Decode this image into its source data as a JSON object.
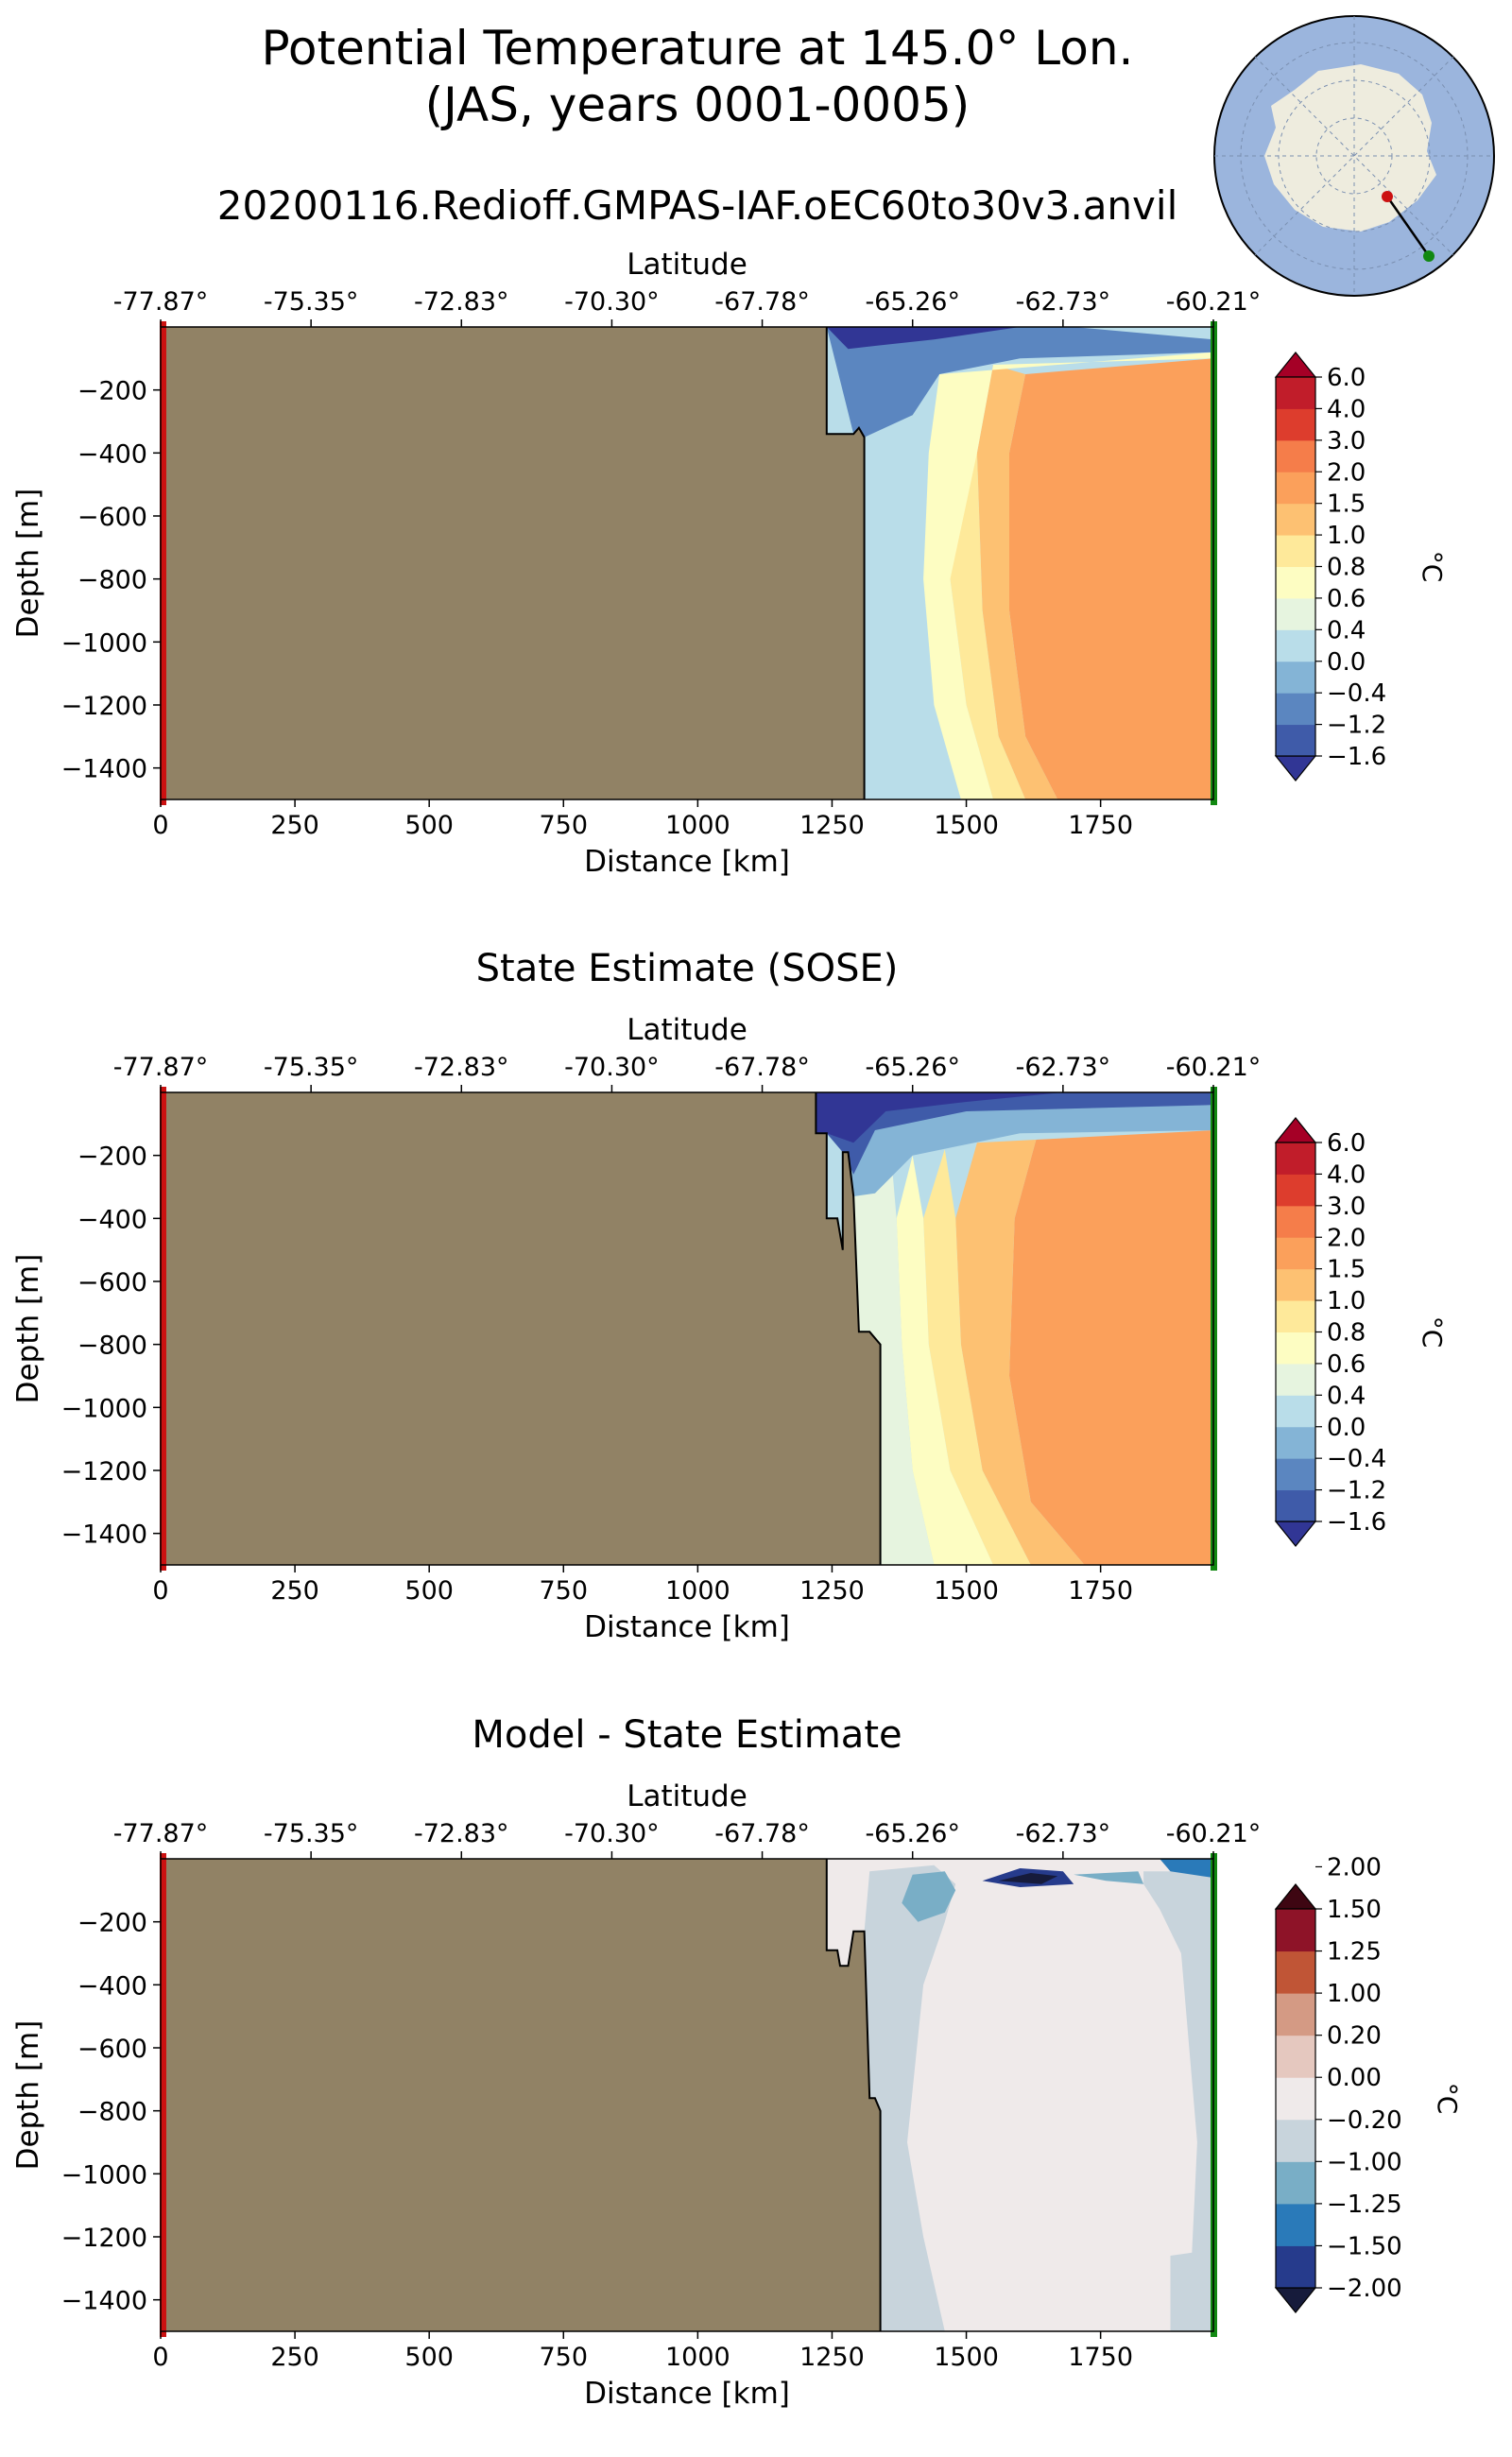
{
  "figure": {
    "title_line1": "Potential Temperature at 145.0° Lon.",
    "title_line2": "(JAS, years 0001-0005)",
    "run_name": "20200116.Redioff.GMPAS-IAF.oEC60to30v3.anvil"
  },
  "colors": {
    "land": "#918265",
    "left_edge": "#cc1111",
    "right_edge": "#118811",
    "map_ocean": "#9bb5dd",
    "map_land": "#eeecde",
    "map_start_point": "#cc1111",
    "map_end_point": "#118811"
  },
  "chart_data": [
    {
      "type": "heatmap",
      "title": "",
      "xlabel": "Distance [km]",
      "ylabel": "Depth [m]",
      "top_xlabel": "Latitude",
      "xlim": [
        0,
        1960
      ],
      "ylim": [
        -1500,
        0
      ],
      "x_ticks": [
        0,
        250,
        500,
        750,
        1000,
        1250,
        1500,
        1750
      ],
      "y_ticks": [
        -200,
        -400,
        -600,
        -800,
        -1000,
        -1200,
        -1400
      ],
      "latitude_ticks": [
        "-77.87°",
        "-75.35°",
        "-72.83°",
        "-70.30°",
        "-67.78°",
        "-65.26°",
        "-62.73°",
        "-60.21°"
      ],
      "colorbar_unit": "°C",
      "colorbar_levels": [
        "-1.6",
        "-1.2",
        "-0.4",
        "0.0",
        "0.4",
        "0.6",
        "0.8",
        "1.0",
        "1.5",
        "2.0",
        "3.0",
        "4.0",
        "6.0"
      ],
      "colorbar_colors": [
        "#313695",
        "#3f5ba9",
        "#5b86c0",
        "#84b4d6",
        "#b9dde9",
        "#e6f4df",
        "#fdfdc2",
        "#fee99a",
        "#fdc172",
        "#fba05b",
        "#f57d4a",
        "#dd3d2d",
        "#c11d2a",
        "#a50026"
      ],
      "land_boundary": [
        [
          1240,
          0
        ],
        [
          1240,
          -340
        ],
        [
          1290,
          -340
        ],
        [
          1300,
          -320
        ],
        [
          1310,
          -350
        ],
        [
          1310,
          -1500
        ]
      ],
      "ocean_bands": [
        {
          "level_index": 11,
          "polygon": [
            [
              1720,
              -280
            ],
            [
              1960,
              -200
            ],
            [
              1960,
              -720
            ],
            [
              1860,
              -640
            ],
            [
              1750,
              -560
            ],
            [
              1710,
              -420
            ]
          ]
        },
        {
          "level_index": 9,
          "polygon": [
            [
              1610,
              -150
            ],
            [
              1960,
              -100
            ],
            [
              1960,
              -1500
            ],
            [
              1670,
              -1500
            ],
            [
              1610,
              -1300
            ],
            [
              1580,
              -900
            ],
            [
              1580,
              -400
            ]
          ]
        },
        {
          "level_index": 8,
          "polygon": [
            [
              1550,
              -120
            ],
            [
              1610,
              -150
            ],
            [
              1580,
              -400
            ],
            [
              1580,
              -900
            ],
            [
              1610,
              -1300
            ],
            [
              1670,
              -1500
            ],
            [
              1610,
              -1500
            ],
            [
              1560,
              -1300
            ],
            [
              1530,
              -900
            ],
            [
              1520,
              -400
            ]
          ]
        },
        {
          "level_index": 7,
          "polygon": [
            [
              1500,
              -200
            ],
            [
              1520,
              -400
            ],
            [
              1530,
              -900
            ],
            [
              1560,
              -1300
            ],
            [
              1610,
              -1500
            ],
            [
              1550,
              -1500
            ],
            [
              1500,
              -1200
            ],
            [
              1470,
              -800
            ],
            [
              1460,
              -400
            ]
          ]
        },
        {
          "level_index": 6,
          "polygon": [
            [
              1450,
              -150
            ],
            [
              1960,
              -80
            ],
            [
              1960,
              -100
            ],
            [
              1550,
              -120
            ],
            [
              1520,
              -400
            ],
            [
              1470,
              -800
            ],
            [
              1500,
              -1200
            ],
            [
              1550,
              -1500
            ],
            [
              1490,
              -1500
            ],
            [
              1440,
              -1200
            ],
            [
              1420,
              -800
            ],
            [
              1430,
              -400
            ]
          ]
        },
        {
          "level_index": 2,
          "polygon": [
            [
              1240,
              0
            ],
            [
              1700,
              0
            ],
            [
              1960,
              -40
            ],
            [
              1960,
              -80
            ],
            [
              1600,
              -100
            ],
            [
              1450,
              -150
            ],
            [
              1400,
              -280
            ],
            [
              1310,
              -350
            ],
            [
              1290,
              -340
            ]
          ]
        },
        {
          "level_index": 0,
          "polygon": [
            [
              1240,
              0
            ],
            [
              1600,
              0
            ],
            [
              1440,
              -40
            ],
            [
              1330,
              -60
            ],
            [
              1280,
              -70
            ]
          ]
        }
      ]
    },
    {
      "type": "heatmap",
      "title": "State Estimate (SOSE)",
      "xlabel": "Distance [km]",
      "ylabel": "Depth [m]",
      "top_xlabel": "Latitude",
      "xlim": [
        0,
        1960
      ],
      "ylim": [
        -1500,
        0
      ],
      "x_ticks": [
        0,
        250,
        500,
        750,
        1000,
        1250,
        1500,
        1750
      ],
      "y_ticks": [
        -200,
        -400,
        -600,
        -800,
        -1000,
        -1200,
        -1400
      ],
      "latitude_ticks": [
        "-77.87°",
        "-75.35°",
        "-72.83°",
        "-70.30°",
        "-67.78°",
        "-65.26°",
        "-62.73°",
        "-60.21°"
      ],
      "colorbar_unit": "°C",
      "colorbar_levels": [
        "-1.6",
        "-1.2",
        "-0.4",
        "0.0",
        "0.4",
        "0.6",
        "0.8",
        "1.0",
        "1.5",
        "2.0",
        "3.0",
        "4.0",
        "6.0"
      ],
      "colorbar_colors": [
        "#313695",
        "#3f5ba9",
        "#5b86c0",
        "#84b4d6",
        "#b9dde9",
        "#e6f4df",
        "#fdfdc2",
        "#fee99a",
        "#fdc172",
        "#fba05b",
        "#f57d4a",
        "#dd3d2d",
        "#c11d2a",
        "#a50026"
      ],
      "land_boundary": [
        [
          1220,
          0
        ],
        [
          1220,
          -130
        ],
        [
          1240,
          -130
        ],
        [
          1240,
          -400
        ],
        [
          1260,
          -400
        ],
        [
          1270,
          -500
        ],
        [
          1270,
          -190
        ],
        [
          1280,
          -190
        ],
        [
          1290,
          -330
        ],
        [
          1300,
          -760
        ],
        [
          1320,
          -760
        ],
        [
          1340,
          -800
        ],
        [
          1340,
          -1500
        ]
      ],
      "ocean_bands": [
        {
          "level_index": 10,
          "polygon": [
            [
              1760,
              -180
            ],
            [
              1960,
              -150
            ],
            [
              1960,
              -1050
            ],
            [
              1870,
              -950
            ],
            [
              1780,
              -800
            ],
            [
              1750,
              -500
            ],
            [
              1740,
              -250
            ]
          ]
        },
        {
          "level_index": 9,
          "polygon": [
            [
              1630,
              -150
            ],
            [
              1960,
              -120
            ],
            [
              1960,
              -1500
            ],
            [
              1720,
              -1500
            ],
            [
              1620,
              -1300
            ],
            [
              1580,
              -900
            ],
            [
              1590,
              -400
            ]
          ]
        },
        {
          "level_index": 8,
          "polygon": [
            [
              1520,
              -160
            ],
            [
              1630,
              -150
            ],
            [
              1590,
              -400
            ],
            [
              1580,
              -900
            ],
            [
              1620,
              -1300
            ],
            [
              1720,
              -1500
            ],
            [
              1620,
              -1500
            ],
            [
              1530,
              -1200
            ],
            [
              1490,
              -800
            ],
            [
              1480,
              -400
            ]
          ]
        },
        {
          "level_index": 7,
          "polygon": [
            [
              1460,
              -180
            ],
            [
              1480,
              -400
            ],
            [
              1490,
              -800
            ],
            [
              1530,
              -1200
            ],
            [
              1620,
              -1500
            ],
            [
              1550,
              -1500
            ],
            [
              1470,
              -1200
            ],
            [
              1430,
              -800
            ],
            [
              1420,
              -400
            ]
          ]
        },
        {
          "level_index": 6,
          "polygon": [
            [
              1400,
              -200
            ],
            [
              1420,
              -400
            ],
            [
              1430,
              -800
            ],
            [
              1470,
              -1200
            ],
            [
              1550,
              -1500
            ],
            [
              1440,
              -1500
            ],
            [
              1400,
              -1200
            ],
            [
              1380,
              -800
            ],
            [
              1370,
              -400
            ]
          ]
        },
        {
          "level_index": 5,
          "polygon": [
            [
              1360,
              -200
            ],
            [
              1370,
              -400
            ],
            [
              1380,
              -800
            ],
            [
              1400,
              -1200
            ],
            [
              1440,
              -1500
            ],
            [
              1340,
              -1500
            ],
            [
              1340,
              -800
            ],
            [
              1300,
              -760
            ],
            [
              1290,
              -330
            ]
          ]
        },
        {
          "level_index": 3,
          "polygon": [
            [
              1240,
              -60
            ],
            [
              1960,
              -40
            ],
            [
              1960,
              -120
            ],
            [
              1600,
              -130
            ],
            [
              1400,
              -200
            ],
            [
              1330,
              -320
            ],
            [
              1290,
              -330
            ],
            [
              1270,
              -190
            ],
            [
              1240,
              -130
            ]
          ]
        },
        {
          "level_index": 1,
          "polygon": [
            [
              1220,
              0
            ],
            [
              1960,
              0
            ],
            [
              1960,
              -40
            ],
            [
              1500,
              -60
            ],
            [
              1330,
              -120
            ],
            [
              1290,
              -260
            ],
            [
              1270,
              -190
            ],
            [
              1240,
              -130
            ],
            [
              1220,
              -130
            ]
          ]
        },
        {
          "level_index": 0,
          "polygon": [
            [
              1220,
              0
            ],
            [
              1680,
              0
            ],
            [
              1500,
              -30
            ],
            [
              1350,
              -60
            ],
            [
              1290,
              -160
            ],
            [
              1240,
              -130
            ],
            [
              1220,
              -130
            ]
          ]
        }
      ]
    },
    {
      "type": "heatmap",
      "title": "Model - State Estimate",
      "xlabel": "Distance [km]",
      "ylabel": "Depth [m]",
      "top_xlabel": "Latitude",
      "xlim": [
        0,
        1960
      ],
      "ylim": [
        -1500,
        0
      ],
      "x_ticks": [
        0,
        250,
        500,
        750,
        1000,
        1250,
        1500,
        1750
      ],
      "y_ticks": [
        -200,
        -400,
        -600,
        -800,
        -1000,
        -1200,
        -1400
      ],
      "latitude_ticks": [
        "-77.87°",
        "-75.35°",
        "-72.83°",
        "-70.30°",
        "-67.78°",
        "-65.26°",
        "-62.73°",
        "-60.21°"
      ],
      "colorbar_unit": "°C",
      "colorbar_levels": [
        "-2.00",
        "-1.50",
        "-1.25",
        "-1.00",
        "-0.20",
        "0.00",
        "0.20",
        "1.00",
        "1.25",
        "1.50",
        "2.00"
      ],
      "colorbar_colors": [
        "#161b3b",
        "#263b8c",
        "#2a7ab9",
        "#79aec6",
        "#c8d4dc",
        "#efeaea",
        "#e5c8bf",
        "#d49a84",
        "#c05536",
        "#8e1328",
        "#3e0612"
      ],
      "land_boundary": [
        [
          1240,
          0
        ],
        [
          1240,
          -290
        ],
        [
          1260,
          -290
        ],
        [
          1265,
          -340
        ],
        [
          1280,
          -340
        ],
        [
          1290,
          -230
        ],
        [
          1310,
          -230
        ],
        [
          1320,
          -760
        ],
        [
          1330,
          -760
        ],
        [
          1340,
          -800
        ],
        [
          1340,
          -1500
        ]
      ],
      "ocean_bands": [
        {
          "level_index": 4,
          "polygon": [
            [
              1320,
              -40
            ],
            [
              1440,
              -20
            ],
            [
              1480,
              -80
            ],
            [
              1460,
              -200
            ],
            [
              1420,
              -400
            ],
            [
              1390,
              -900
            ],
            [
              1420,
              -1200
            ],
            [
              1460,
              -1500
            ],
            [
              1340,
              -1500
            ],
            [
              1340,
              -800
            ],
            [
              1320,
              -760
            ],
            [
              1310,
              -230
            ]
          ]
        },
        {
          "level_index": 4,
          "polygon": [
            [
              1830,
              -40
            ],
            [
              1960,
              -40
            ],
            [
              1960,
              -1500
            ],
            [
              1880,
              -1500
            ],
            [
              1880,
              -1260
            ],
            [
              1920,
              -1250
            ],
            [
              1930,
              -900
            ],
            [
              1900,
              -300
            ],
            [
              1860,
              -160
            ],
            [
              1830,
              -80
            ]
          ]
        },
        {
          "level_index": 3,
          "polygon": [
            [
              1400,
              -50
            ],
            [
              1460,
              -40
            ],
            [
              1480,
              -100
            ],
            [
              1460,
              -170
            ],
            [
              1410,
              -200
            ],
            [
              1380,
              -140
            ]
          ]
        },
        {
          "level_index": 3,
          "polygon": [
            [
              1700,
              -50
            ],
            [
              1820,
              -40
            ],
            [
              1830,
              -80
            ],
            [
              1760,
              -70
            ]
          ]
        },
        {
          "level_index": 2,
          "polygon": [
            [
              1860,
              0
            ],
            [
              1960,
              0
            ],
            [
              1960,
              -60
            ],
            [
              1880,
              -40
            ]
          ]
        },
        {
          "level_index": 1,
          "polygon": [
            [
              1530,
              -70
            ],
            [
              1600,
              -30
            ],
            [
              1680,
              -40
            ],
            [
              1700,
              -80
            ],
            [
              1600,
              -90
            ]
          ]
        },
        {
          "level_index": 0,
          "polygon": [
            [
              1560,
              -70
            ],
            [
              1620,
              -45
            ],
            [
              1670,
              -55
            ],
            [
              1640,
              -80
            ]
          ]
        }
      ]
    }
  ]
}
